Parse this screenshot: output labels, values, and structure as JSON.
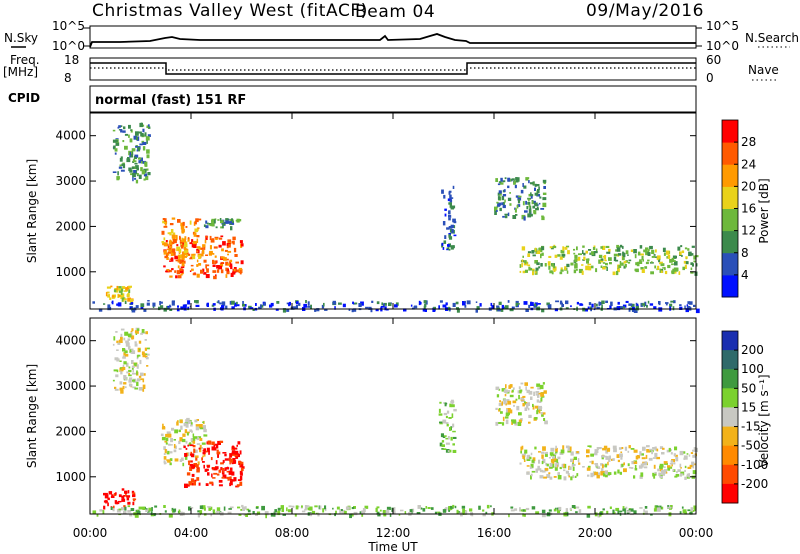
{
  "header": {
    "title": "Christmas Valley West (fitACF)",
    "beam": "Beam 04",
    "date": "09/May/2016"
  },
  "strips": {
    "nsky_label": "N.Sky",
    "nsearch_label": "N.Search",
    "n_ticks": [
      "10^5",
      "10^0"
    ],
    "freq_label_1": "Freq.",
    "freq_label_2": "[MHz]",
    "freq_ticks": [
      "18",
      "8"
    ],
    "nave_label": "Nave",
    "nave_ticks": [
      "60",
      "0"
    ],
    "cpid_label": "CPID",
    "cpid_text": "normal (fast) 151 RF"
  },
  "chart_data": [
    {
      "type": "heatmap",
      "name": "power",
      "ylabel": "Slant Range [km]",
      "xlabel": "",
      "xlim": [
        0,
        24
      ],
      "ylim": [
        180,
        4500
      ],
      "yticks": [
        "1000",
        "2000",
        "3000",
        "4000"
      ],
      "colorbar": {
        "label": "Power [dB]",
        "ticks": [
          "4",
          "8",
          "12",
          "16",
          "20",
          "24",
          "28"
        ],
        "colors": [
          "#0010ff",
          "#2a4fb8",
          "#3c8a4c",
          "#6db83c",
          "#e9d21a",
          "#ff9a00",
          "#ff5a00",
          "#ff0000"
        ]
      },
      "regions": [
        {
          "x0": 0.5,
          "x1": 1.6,
          "y0": 400,
          "y1": 700,
          "level": 4
        },
        {
          "x0": 0.9,
          "x1": 2.3,
          "y0": 3000,
          "y1": 4300,
          "level": 2
        },
        {
          "x0": 2.9,
          "x1": 6.0,
          "y0": 900,
          "y1": 1800,
          "level": 6
        },
        {
          "x0": 2.8,
          "x1": 4.3,
          "y0": 1300,
          "y1": 2200,
          "level": 5
        },
        {
          "x0": 4.5,
          "x1": 5.9,
          "y0": 2000,
          "y1": 2200,
          "level": 2
        },
        {
          "x0": 13.9,
          "x1": 14.4,
          "y0": 1500,
          "y1": 2900,
          "level": 1
        },
        {
          "x0": 16.0,
          "x1": 18.0,
          "y0": 2200,
          "y1": 3100,
          "level": 2
        },
        {
          "x0": 17.0,
          "x1": 24.0,
          "y0": 1000,
          "y1": 1600,
          "level": 3
        },
        {
          "x0": 0.0,
          "x1": 24.0,
          "y0": 180,
          "y1": 380,
          "level": 1
        }
      ]
    },
    {
      "type": "heatmap",
      "name": "velocity",
      "ylabel": "Slant Range [km]",
      "xlabel": "Time UT",
      "xlim": [
        0,
        24
      ],
      "ylim": [
        180,
        4500
      ],
      "xticks": [
        "00:00",
        "04:00",
        "08:00",
        "12:00",
        "16:00",
        "20:00",
        "00:00"
      ],
      "yticks": [
        "1000",
        "2000",
        "3000",
        "4000"
      ],
      "colorbar": {
        "label": "Velocity [m s⁻¹]",
        "ticks": [
          "200",
          "100",
          "50",
          "15",
          "-15",
          "-50",
          "-100",
          "-200"
        ],
        "colors": [
          "#1a2fb0",
          "#2f6a6a",
          "#3f9a3f",
          "#7bd12e",
          "#c8c8c2",
          "#f2b21a",
          "#ff8a00",
          "#ff4a00",
          "#ff0000"
        ]
      },
      "regions": [
        {
          "x0": 0.5,
          "x1": 1.7,
          "y0": 350,
          "y1": 750,
          "level": 8
        },
        {
          "x0": 0.9,
          "x1": 2.3,
          "y0": 2900,
          "y1": 4300,
          "level": 4
        },
        {
          "x0": 2.8,
          "x1": 4.5,
          "y0": 1300,
          "y1": 2300,
          "level": 4
        },
        {
          "x0": 3.7,
          "x1": 6.0,
          "y0": 800,
          "y1": 1800,
          "level": 8
        },
        {
          "x0": 13.8,
          "x1": 14.4,
          "y0": 1500,
          "y1": 2700,
          "level": 3
        },
        {
          "x0": 16.0,
          "x1": 18.0,
          "y0": 2200,
          "y1": 3100,
          "level": 4
        },
        {
          "x0": 17.0,
          "x1": 24.0,
          "y0": 1000,
          "y1": 1700,
          "level": 4
        },
        {
          "x0": 0.0,
          "x1": 24.0,
          "y0": 180,
          "y1": 380,
          "level": 3
        }
      ]
    }
  ]
}
